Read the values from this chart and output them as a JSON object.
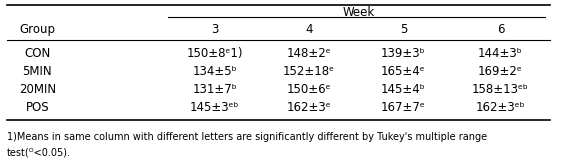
{
  "title": "Week",
  "col_headers": [
    "Group",
    "3",
    "4",
    "5",
    "6"
  ],
  "rows": [
    [
      "CON",
      "150±8ᵉ1)",
      "148±2ᵉ",
      "139±3ᵇ",
      "144±3ᵇ"
    ],
    [
      "5MIN",
      "134±5ᵇ",
      "152±18ᵉ",
      "165±4ᵉ",
      "169±2ᵉ"
    ],
    [
      "20MIN",
      "131±7ᵇ",
      "150±6ᵉ",
      "145±4ᵇ",
      "158±13ᵉᵇ"
    ],
    [
      "POS",
      "145±3ᵉᵇ",
      "162±3ᵉ",
      "167±7ᵉ",
      "162±3ᵉᵇ"
    ]
  ],
  "footnote": "¹⁻Means in same column with different letters are significantly different by Tukey's multiple range\ntest(ᴼ<0.05).",
  "bg_color": "#ffffff",
  "text_color": "#000000",
  "font_size": 8.5,
  "header_font_size": 8.5
}
